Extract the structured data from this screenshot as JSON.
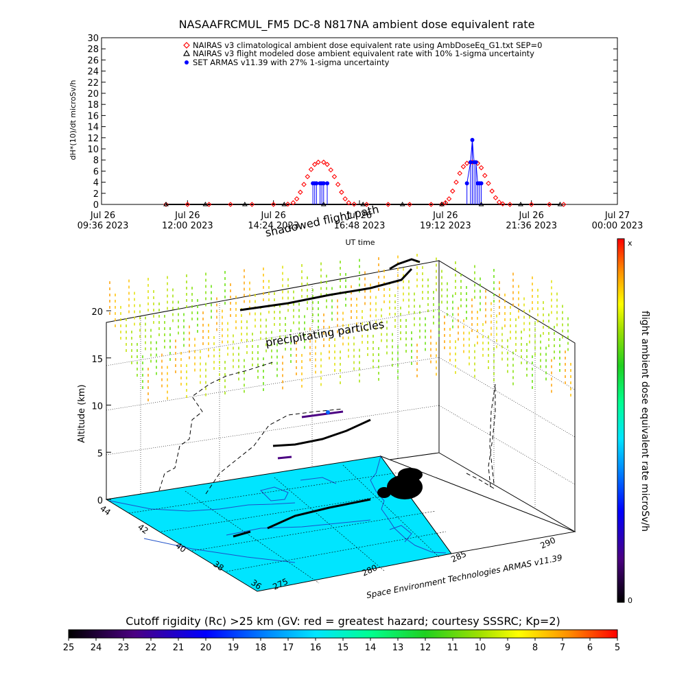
{
  "colors": {
    "nairas_clim": "#ff0000",
    "nairas_flight": "#000000",
    "armas": "#0000ff",
    "earth_surface": "#00e5ff",
    "coast": "#1e50c8"
  },
  "chart_data": [
    {
      "type": "scatter",
      "title": "NASAAFRCMUL_FM5 DC-8   N817NA ambient dose equivalent rate",
      "ylabel": "dH*(10)/dt microSv/h",
      "xlabel": "UT time",
      "ylim": [
        0,
        30
      ],
      "yticks": [
        0,
        2,
        4,
        6,
        8,
        10,
        12,
        14,
        16,
        18,
        20,
        22,
        24,
        26,
        28,
        30
      ],
      "xlim_hours": [
        9.6,
        24.0
      ],
      "xticks": [
        {
          "h": 9.6,
          "l1": "Jul 26",
          "l2": "09:36 2023"
        },
        {
          "h": 12.0,
          "l1": "Jul 26",
          "l2": "12:00 2023"
        },
        {
          "h": 14.4,
          "l1": "Jul 26",
          "l2": "14:24 2023"
        },
        {
          "h": 16.8,
          "l1": "Jul 26",
          "l2": "16:48 2023"
        },
        {
          "h": 19.2,
          "l1": "Jul 26",
          "l2": "19:12 2023"
        },
        {
          "h": 21.6,
          "l1": "Jul 26",
          "l2": "21:36 2023"
        },
        {
          "h": 24.0,
          "l1": "Jul 27",
          "l2": "00:00 2023"
        }
      ],
      "legend_position": "top",
      "series": [
        {
          "name": "NAIRAS v3 climatological ambient dose equivalent rate using AmbDoseEq_G1.txt SEP=0",
          "marker": "diamond",
          "points": [
            [
              11.4,
              0
            ],
            [
              12.0,
              0
            ],
            [
              12.6,
              0
            ],
            [
              13.2,
              0
            ],
            [
              13.8,
              0
            ],
            [
              14.4,
              0
            ],
            [
              14.8,
              0.05
            ],
            [
              14.95,
              0.3
            ],
            [
              15.05,
              1.0
            ],
            [
              15.15,
              2.2
            ],
            [
              15.25,
              3.6
            ],
            [
              15.35,
              5.0
            ],
            [
              15.45,
              6.3
            ],
            [
              15.55,
              7.2
            ],
            [
              15.65,
              7.6
            ],
            [
              15.8,
              7.6
            ],
            [
              15.9,
              7.2
            ],
            [
              16.0,
              6.2
            ],
            [
              16.1,
              5.0
            ],
            [
              16.2,
              3.6
            ],
            [
              16.3,
              2.2
            ],
            [
              16.4,
              1.0
            ],
            [
              16.5,
              0.3
            ],
            [
              16.65,
              0.05
            ],
            [
              17.0,
              0
            ],
            [
              17.6,
              0
            ],
            [
              18.2,
              0
            ],
            [
              18.8,
              0
            ],
            [
              19.1,
              0.05
            ],
            [
              19.2,
              0.3
            ],
            [
              19.3,
              1.0
            ],
            [
              19.4,
              2.4
            ],
            [
              19.5,
              4.0
            ],
            [
              19.6,
              5.6
            ],
            [
              19.7,
              6.8
            ],
            [
              19.8,
              7.4
            ],
            [
              19.95,
              7.6
            ],
            [
              20.1,
              7.4
            ],
            [
              20.2,
              6.6
            ],
            [
              20.3,
              5.2
            ],
            [
              20.4,
              3.8
            ],
            [
              20.5,
              2.4
            ],
            [
              20.6,
              1.2
            ],
            [
              20.7,
              0.4
            ],
            [
              20.8,
              0.1
            ],
            [
              21.0,
              0
            ],
            [
              21.6,
              0
            ],
            [
              22.1,
              0
            ],
            [
              22.5,
              0
            ]
          ]
        },
        {
          "name": "NAIRAS v3 flight modeled dose ambient equivalent rate with 10% 1-sigma uncertainty",
          "marker": "triangle",
          "points": [
            [
              11.4,
              0
            ],
            [
              12.5,
              0
            ],
            [
              13.6,
              0
            ],
            [
              14.7,
              0
            ],
            [
              15.8,
              0
            ],
            [
              16.9,
              0
            ],
            [
              18.0,
              0
            ],
            [
              19.1,
              0
            ],
            [
              20.2,
              0
            ],
            [
              21.3,
              0
            ],
            [
              22.4,
              0
            ]
          ]
        },
        {
          "name": "SET ARMAS v11.39 with 27% 1-sigma uncertainty",
          "marker": "circle",
          "points": [
            [
              15.5,
              3.8
            ],
            [
              15.55,
              3.8
            ],
            [
              15.6,
              3.8
            ],
            [
              15.7,
              3.8
            ],
            [
              15.75,
              3.8
            ],
            [
              15.8,
              3.8
            ],
            [
              15.9,
              3.8
            ],
            [
              19.8,
              3.8
            ],
            [
              19.9,
              7.6
            ],
            [
              19.95,
              11.6
            ],
            [
              20.0,
              7.6
            ],
            [
              20.05,
              7.6
            ],
            [
              20.1,
              3.8
            ],
            [
              20.15,
              3.8
            ],
            [
              20.2,
              3.8
            ]
          ]
        }
      ]
    },
    {
      "type": "scatter",
      "title": "",
      "zlabel": "Altitude (km)",
      "zticks": [
        0,
        5,
        10,
        15,
        20
      ],
      "lat_ticks": [
        44,
        42,
        40,
        38,
        36
      ],
      "lon_ticks": [
        275,
        280,
        285,
        290
      ],
      "annotations": [
        "shadowed flight path",
        "precipitating particles",
        "Space Environment Technologies ARMAS v11.39"
      ],
      "colorbar": {
        "label": "flight ambient dose equivalent rate microSv/h",
        "top": "x",
        "bottom": "0"
      }
    },
    {
      "type": "colorbar",
      "title": "Cutoff rigidity (Rc) >25 km (GV: red = greatest hazard; courtesy SSSRC; Kp=2)",
      "ticks": [
        25,
        24,
        23,
        22,
        21,
        20,
        19,
        18,
        17,
        16,
        15,
        14,
        13,
        12,
        11,
        10,
        9,
        8,
        7,
        6,
        5
      ]
    }
  ]
}
